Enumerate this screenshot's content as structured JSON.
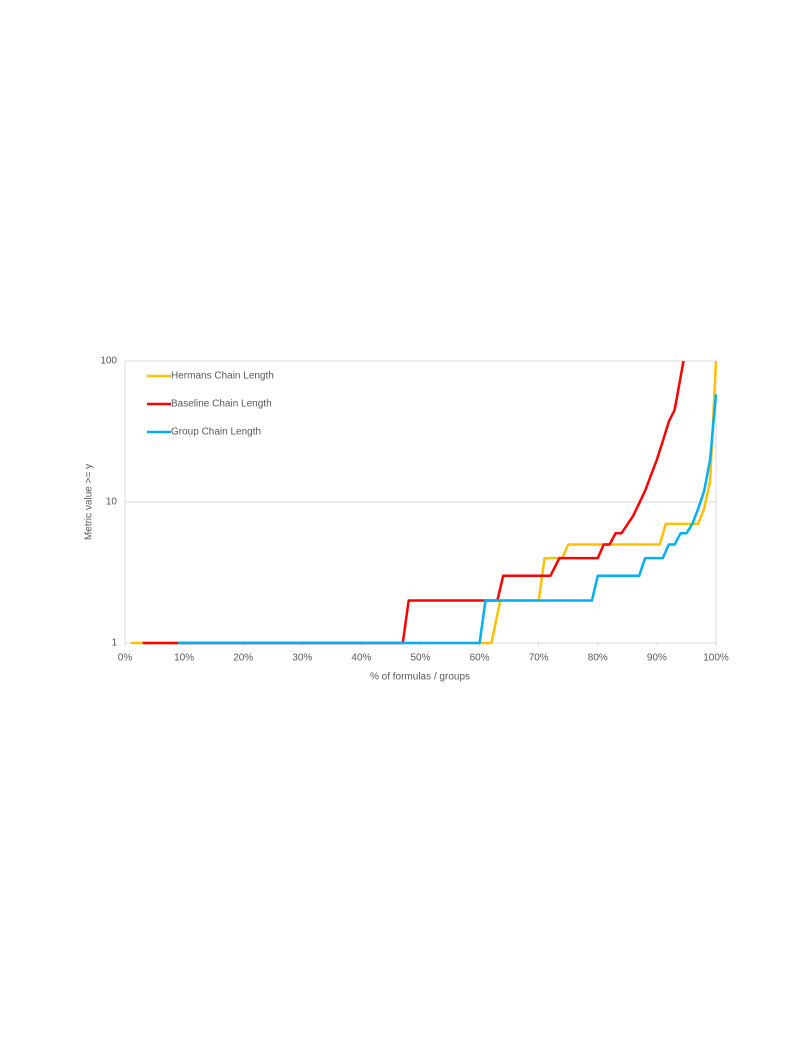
{
  "chart_data": {
    "type": "line",
    "xlabel": "% of formulas / groups",
    "ylabel": "Metric value >= y",
    "yscale": "log",
    "grid": true,
    "legend": "upper left",
    "xlim": [
      0,
      100
    ],
    "xticks": [
      {
        "value": 0,
        "label": "0%"
      },
      {
        "value": 10,
        "label": "10%"
      },
      {
        "value": 20,
        "label": "20%"
      },
      {
        "value": 30,
        "label": "30%"
      },
      {
        "value": 40,
        "label": "40%"
      },
      {
        "value": 50,
        "label": "50%"
      },
      {
        "value": 60,
        "label": "60%"
      },
      {
        "value": 70,
        "label": "70%"
      },
      {
        "value": 80,
        "label": "80%"
      },
      {
        "value": 90,
        "label": "90%"
      },
      {
        "value": 100,
        "label": "100%"
      }
    ],
    "ylim": [
      1,
      100
    ],
    "yticks": [
      1,
      10,
      100
    ],
    "series": [
      {
        "name": "Hermans Chain Length",
        "color": "#ffc000",
        "x": [
          1,
          62,
          63.5,
          70,
          71,
          74,
          75,
          90.5,
          91.5,
          97,
          98,
          99,
          100
        ],
        "values": [
          1,
          1,
          2,
          2,
          4,
          4,
          5,
          5,
          7,
          7,
          9,
          14,
          100
        ]
      },
      {
        "name": "Baseline Chain Length",
        "color": "#ff0000",
        "x": [
          3,
          47,
          48,
          63,
          64,
          72,
          73.5,
          80,
          81,
          82,
          83,
          84,
          86,
          88,
          90,
          91,
          92,
          93,
          94.5
        ],
        "values": [
          1,
          1,
          2,
          2,
          3,
          3,
          4,
          4,
          5,
          5,
          6,
          6,
          8,
          12,
          20,
          27,
          37,
          45,
          100
        ]
      },
      {
        "name": "Group Chain Length",
        "color": "#00b0f0",
        "x": [
          9,
          60,
          61,
          79,
          80,
          87,
          88,
          91,
          92,
          93,
          94,
          95,
          96,
          97,
          98,
          99,
          100
        ],
        "values": [
          1,
          1,
          2,
          2,
          3,
          3,
          4,
          4,
          5,
          5,
          6,
          6,
          7,
          9,
          12,
          20,
          58
        ]
      }
    ]
  }
}
